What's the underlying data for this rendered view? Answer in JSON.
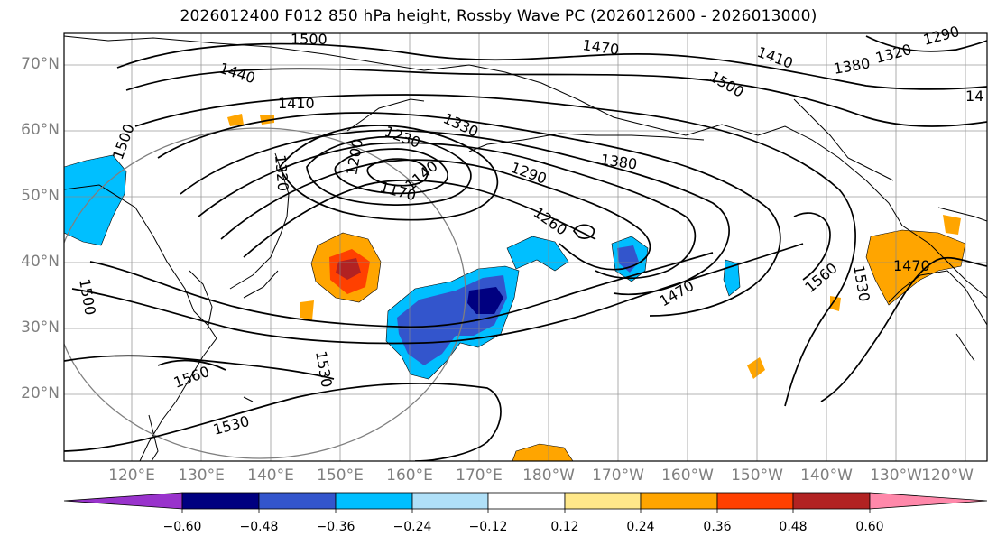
{
  "title": "2026012400 F012 850 hPa height, Rossby Wave PC (2026012600 - 2026013000)",
  "lat_labels": [
    "70°N",
    "60°N",
    "50°N",
    "40°N",
    "30°N",
    "20°N"
  ],
  "lon_labels": [
    "120°E",
    "130°E",
    "140°E",
    "150°E",
    "160°E",
    "170°E",
    "180°W",
    "170°W",
    "160°W",
    "150°W",
    "140°W",
    "130°W",
    "120°W"
  ],
  "colorbar": {
    "labels": [
      "−0.60",
      "−0.48",
      "−0.36",
      "−0.24",
      "−0.12",
      "0.12",
      "0.24",
      "0.36",
      "0.48",
      "0.60"
    ],
    "colors": [
      "#9933cc",
      "#000080",
      "#3355cc",
      "#00bfff",
      "#b0e0f8",
      "#ffffff",
      "#ffe88a",
      "#ffa500",
      "#ff4000",
      "#b22222",
      "#ff88aa"
    ]
  },
  "contour_labels": [
    "1500",
    "1470",
    "1410",
    "1320",
    "1290",
    "1440",
    "1410",
    "1380",
    "1500",
    "1330",
    "1230",
    "1200",
    "1320",
    "1170",
    "1140",
    "1290",
    "1380",
    "1260",
    "1500",
    "1470",
    "1560",
    "1530",
    "1470",
    "1500",
    "1560",
    "1530",
    "1530",
    "14"
  ],
  "map_extent": {
    "lon_min": 112,
    "lon_max": 245,
    "lat_min": 10,
    "lat_max": 75
  }
}
